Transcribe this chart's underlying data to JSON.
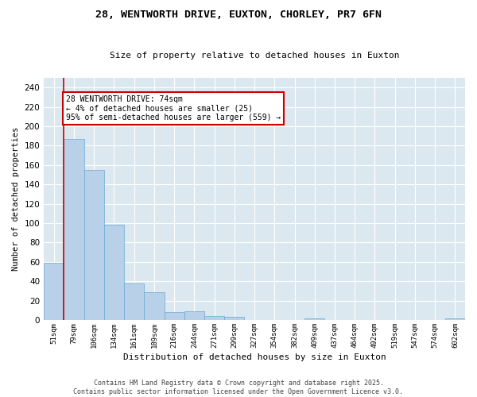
{
  "title_line1": "28, WENTWORTH DRIVE, EUXTON, CHORLEY, PR7 6FN",
  "title_line2": "Size of property relative to detached houses in Euxton",
  "xlabel": "Distribution of detached houses by size in Euxton",
  "ylabel": "Number of detached properties",
  "bar_color": "#b8d0e8",
  "bar_edge_color": "#6aaad4",
  "vline_color": "#cc0000",
  "categories": [
    "51sqm",
    "79sqm",
    "106sqm",
    "134sqm",
    "161sqm",
    "189sqm",
    "216sqm",
    "244sqm",
    "271sqm",
    "299sqm",
    "327sqm",
    "354sqm",
    "382sqm",
    "409sqm",
    "437sqm",
    "464sqm",
    "492sqm",
    "519sqm",
    "547sqm",
    "574sqm",
    "602sqm"
  ],
  "values": [
    59,
    187,
    155,
    98,
    38,
    29,
    8,
    9,
    4,
    3,
    0,
    0,
    0,
    2,
    0,
    0,
    0,
    0,
    0,
    0,
    2
  ],
  "ylim": [
    0,
    250
  ],
  "yticks": [
    0,
    20,
    40,
    60,
    80,
    100,
    120,
    140,
    160,
    180,
    200,
    220,
    240
  ],
  "annotation_text": "28 WENTWORTH DRIVE: 74sqm\n← 4% of detached houses are smaller (25)\n95% of semi-detached houses are larger (559) →",
  "annotation_box_color": "#ffffff",
  "annotation_border_color": "#cc0000",
  "footer_line1": "Contains HM Land Registry data © Crown copyright and database right 2025.",
  "footer_line2": "Contains public sector information licensed under the Open Government Licence v3.0.",
  "fig_bg_color": "#ffffff",
  "plot_bg_color": "#dce8f0",
  "grid_color": "#ffffff",
  "vline_x_index": 0.5
}
